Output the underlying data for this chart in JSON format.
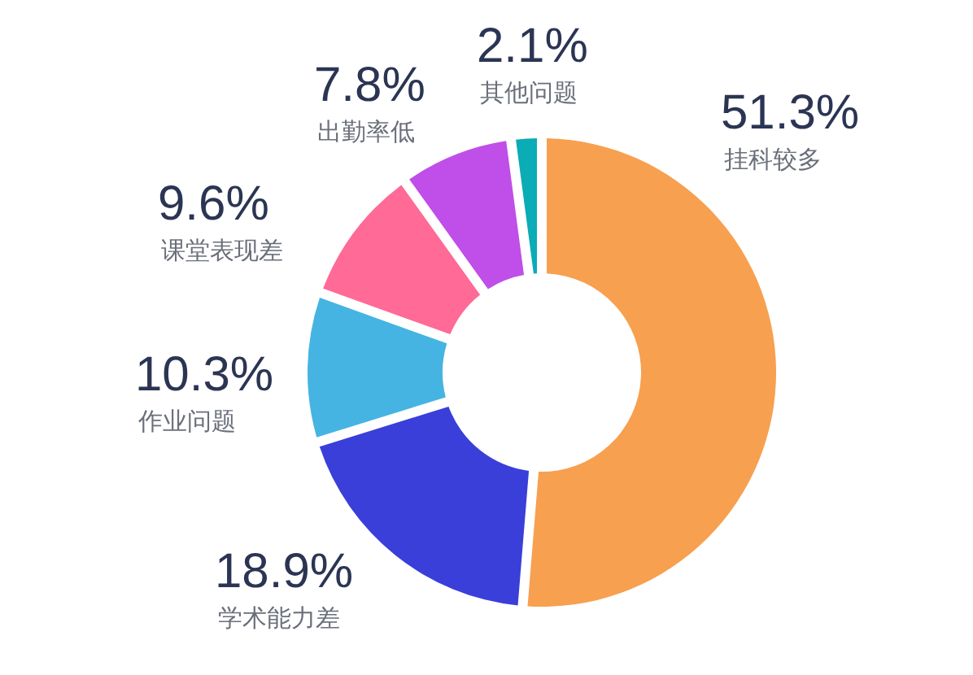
{
  "chart_data": {
    "type": "donut",
    "categories": [
      "挂科较多",
      "学术能力差",
      "作业问题",
      "课堂表现差",
      "出勤率低",
      "其他问题"
    ],
    "values": [
      51.3,
      18.9,
      10.3,
      9.6,
      7.8,
      2.1
    ],
    "colors": [
      "#f7a050",
      "#3a3fd9",
      "#45b4e2",
      "#ff6a97",
      "#c04ee8",
      "#0aacb6"
    ],
    "value_labels": [
      "51.3%",
      "18.9%",
      "10.3%",
      "9.6%",
      "7.8%",
      "2.1%"
    ]
  }
}
